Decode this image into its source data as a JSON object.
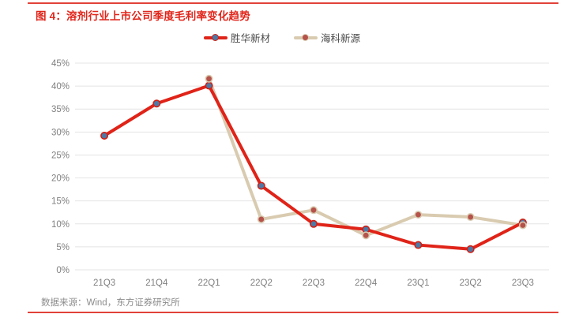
{
  "header": {
    "title": "图 4：溶剂行业上市公司季度毛利率变化趋势"
  },
  "footer": {
    "source": "数据来源：Wind，东方证券研究所"
  },
  "colors": {
    "title_red": "#e0251a",
    "rule_red": "#e2423a",
    "series1_line": "#e02318",
    "series1_marker_fill": "#4d79a6",
    "series1_marker_ring": "#cf2015",
    "series2_line": "#d9cbb0",
    "series2_marker_fill": "#b5524a",
    "series2_marker_ring": "#d9cbb0",
    "grid": "#e4e4e4",
    "axis_text": "#808080"
  },
  "chart_data": {
    "type": "line",
    "title": "图 4：溶剂行业上市公司季度毛利率变化趋势",
    "categories": [
      "21Q3",
      "21Q4",
      "22Q1",
      "22Q2",
      "22Q3",
      "22Q4",
      "23Q1",
      "23Q2",
      "23Q3"
    ],
    "series": [
      {
        "name": "胜华新材",
        "values": [
          29.2,
          36.2,
          40.1,
          18.3,
          10.0,
          8.8,
          5.4,
          4.5,
          10.3
        ]
      },
      {
        "name": "海科新源",
        "values": [
          null,
          null,
          41.6,
          11.0,
          13.0,
          7.5,
          12.0,
          11.5,
          9.7
        ]
      }
    ],
    "xlabel": "",
    "ylabel": "",
    "ylim": [
      0,
      45
    ],
    "ytick_step": 5,
    "yticks": [
      "0%",
      "5%",
      "10%",
      "15%",
      "20%",
      "25%",
      "30%",
      "35%",
      "40%",
      "45%"
    ],
    "grid": "horizontal",
    "legend_position": "top-center"
  }
}
